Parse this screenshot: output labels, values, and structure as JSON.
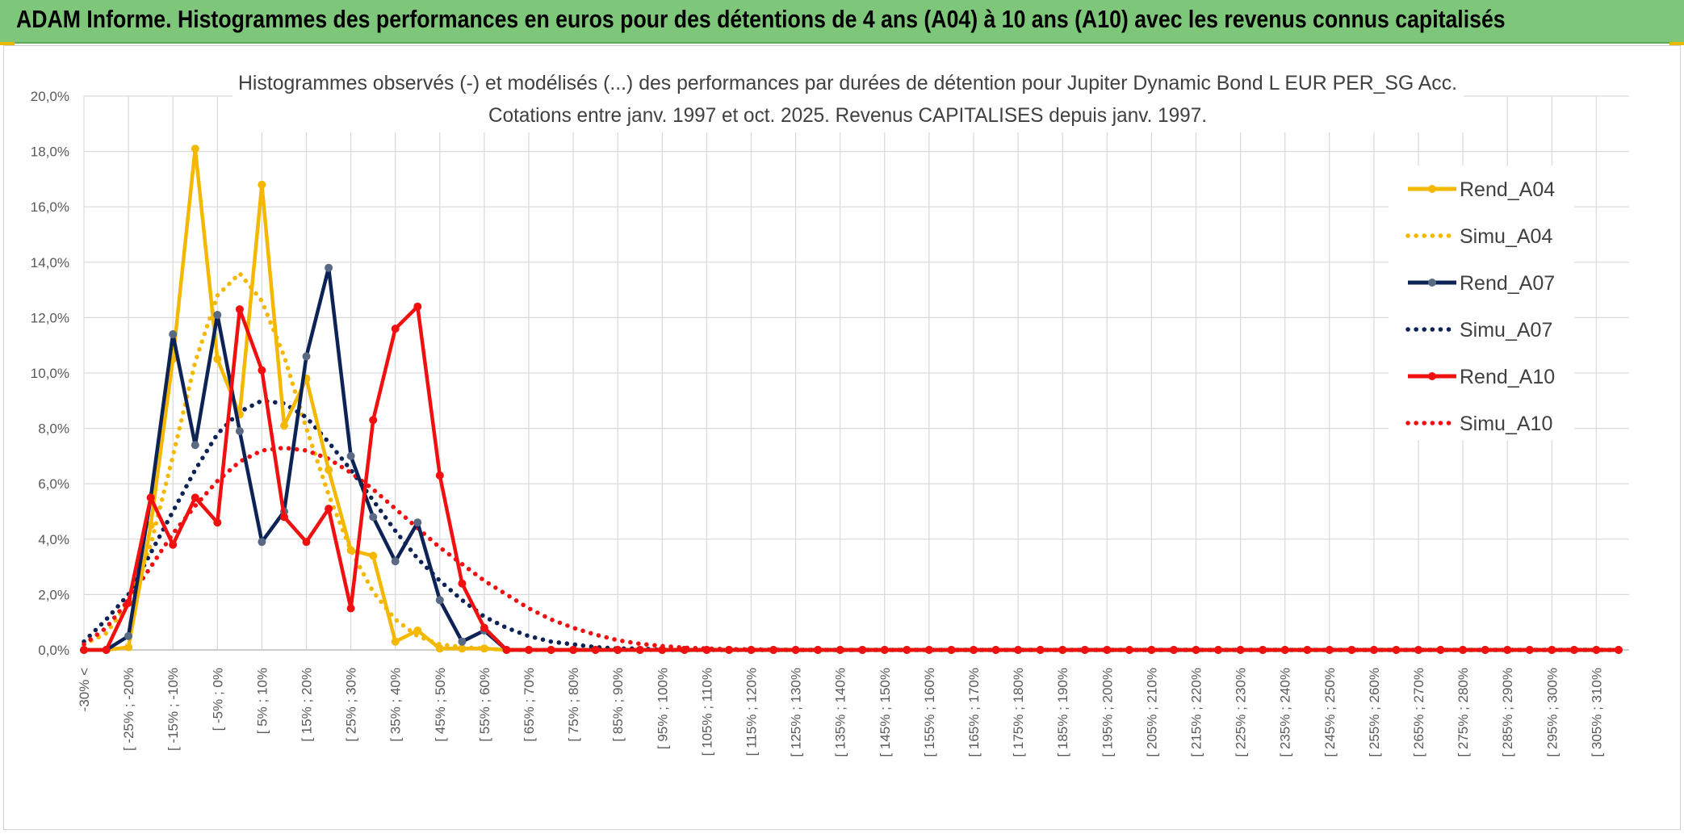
{
  "header": {
    "title": "ADAM Informe. Histogrammes des performances en euros pour des détentions de 4 ans (A04) à 10 ans (A10) avec les revenus connus capitalisés"
  },
  "chart_data": {
    "type": "line",
    "title": "Histogrammes observés (-) et modélisés (...) des performances par durées de détention pour Jupiter Dynamic Bond L EUR PER_SG Acc.",
    "subtitle": "Cotations entre janv. 1997 et oct. 2025. Revenus CAPITALISES depuis janv. 1997.",
    "xlabel": "",
    "ylabel": "",
    "ylim": [
      0,
      20
    ],
    "y_ticks": [
      "0,0%",
      "2,0%",
      "4,0%",
      "6,0%",
      "8,0%",
      "10,0%",
      "12,0%",
      "14,0%",
      "16,0%",
      "18,0%",
      "20,0%"
    ],
    "grid": true,
    "legend_position": "right",
    "x_count": 70,
    "x_tick_labels": [
      "-30% <",
      "[ -25% ; -20%",
      "[ -15% ; -10%",
      "[ -5% ; 0%",
      "[ 5% ; 10%",
      "[ 15% ; 20%",
      "[ 25% ; 30%",
      "[ 35% ; 40%",
      "[ 45% ; 50%",
      "[ 55% ; 60%",
      "[ 65% ; 70%",
      "[ 75% ; 80%",
      "[ 85% ; 90%",
      "[ 95% ; 100%",
      "[ 105% ; 110%",
      "[ 115% ; 120%",
      "[ 125% ; 130%",
      "[ 135% ; 140%",
      "[ 145% ; 150%",
      "[ 155% ; 160%",
      "[ 165% ; 170%",
      "[ 175% ; 180%",
      "[ 185% ; 190%",
      "[ 195% ; 200%",
      "[ 205% ; 210%",
      "[ 215% ; 220%",
      "[ 225% ; 230%",
      "[ 235% ; 240%",
      "[ 245% ; 250%",
      "[ 255% ; 260%",
      "[ 265% ; 270%",
      "[ 275% ; 280%",
      "[ 285% ; 290%",
      "[ 295% ; 300%",
      "[ 305% ; 310%"
    ],
    "x_tick_step": 2,
    "series": [
      {
        "name": "Rend_A04",
        "style": "solid",
        "marker": true,
        "color": "#f5b800",
        "values": [
          0,
          0,
          0.1,
          4.5,
          10.5,
          18.1,
          10.5,
          8.5,
          16.8,
          8.1,
          9.8,
          6.5,
          3.6,
          3.4,
          0.3,
          0.7,
          0.05,
          0.05,
          0.05,
          0,
          0,
          0,
          0,
          0,
          0,
          0,
          0,
          0,
          0,
          0,
          0,
          0,
          0,
          0,
          0,
          0,
          0,
          0,
          0,
          0,
          0,
          0,
          0,
          0,
          0,
          0,
          0,
          0,
          0,
          0,
          0,
          0,
          0,
          0,
          0,
          0,
          0,
          0,
          0,
          0,
          0,
          0,
          0,
          0,
          0,
          0,
          0,
          0,
          0,
          0
        ]
      },
      {
        "name": "Simu_A04",
        "style": "dotted",
        "marker": false,
        "color": "#f5b800",
        "values": [
          0.2,
          0.6,
          1.7,
          3.8,
          7.0,
          10.4,
          12.8,
          13.6,
          12.6,
          10.6,
          8.0,
          5.6,
          3.6,
          2.1,
          1.1,
          0.5,
          0.2,
          0.1,
          0.05,
          0,
          0,
          0,
          0,
          0,
          0,
          0,
          0,
          0,
          0,
          0,
          0,
          0,
          0,
          0,
          0,
          0,
          0,
          0,
          0,
          0,
          0,
          0,
          0,
          0,
          0,
          0,
          0,
          0,
          0,
          0,
          0,
          0,
          0,
          0,
          0,
          0,
          0,
          0,
          0,
          0,
          0,
          0,
          0,
          0,
          0,
          0,
          0,
          0,
          0,
          0
        ]
      },
      {
        "name": "Rend_A07",
        "style": "solid",
        "marker": true,
        "color": "#0d2356",
        "values": [
          0,
          0,
          0.5,
          5.5,
          11.4,
          7.4,
          12.1,
          7.9,
          3.9,
          5.0,
          10.6,
          13.8,
          7.0,
          4.8,
          3.2,
          4.6,
          1.8,
          0.3,
          0.7,
          0,
          0,
          0,
          0,
          0,
          0,
          0,
          0,
          0,
          0,
          0,
          0,
          0,
          0,
          0,
          0,
          0,
          0,
          0,
          0,
          0,
          0,
          0,
          0,
          0,
          0,
          0,
          0,
          0,
          0,
          0,
          0,
          0,
          0,
          0,
          0,
          0,
          0,
          0,
          0,
          0,
          0,
          0,
          0,
          0,
          0,
          0,
          0,
          0,
          0,
          0
        ]
      },
      {
        "name": "Simu_A07",
        "style": "dotted",
        "marker": false,
        "color": "#0d2356",
        "values": [
          0.3,
          1.1,
          2.0,
          3.5,
          5.0,
          6.5,
          7.8,
          8.6,
          9.0,
          8.9,
          8.4,
          7.5,
          6.5,
          5.4,
          4.3,
          3.3,
          2.5,
          1.8,
          1.2,
          0.8,
          0.5,
          0.3,
          0.2,
          0.1,
          0.05,
          0.05,
          0,
          0,
          0,
          0,
          0,
          0,
          0,
          0,
          0,
          0,
          0,
          0,
          0,
          0,
          0,
          0,
          0,
          0,
          0,
          0,
          0,
          0,
          0,
          0,
          0,
          0,
          0,
          0,
          0,
          0,
          0,
          0,
          0,
          0,
          0,
          0,
          0,
          0,
          0,
          0,
          0,
          0,
          0,
          0
        ]
      },
      {
        "name": "Rend_A10",
        "style": "solid",
        "marker": true,
        "color": "#f01010",
        "values": [
          0,
          0,
          1.7,
          5.5,
          3.8,
          5.5,
          4.6,
          12.3,
          10.1,
          4.8,
          3.9,
          5.1,
          1.5,
          8.3,
          11.6,
          12.4,
          6.3,
          2.4,
          0.8,
          0,
          0,
          0,
          0,
          0,
          0,
          0,
          0,
          0,
          0,
          0,
          0,
          0,
          0,
          0,
          0,
          0,
          0,
          0,
          0,
          0,
          0,
          0,
          0,
          0,
          0,
          0,
          0,
          0,
          0,
          0,
          0,
          0,
          0,
          0,
          0,
          0,
          0,
          0,
          0,
          0,
          0,
          0,
          0,
          0,
          0,
          0,
          0,
          0,
          0,
          0
        ]
      },
      {
        "name": "Simu_A10",
        "style": "dotted",
        "marker": false,
        "color": "#f01010",
        "values": [
          0.2,
          0.8,
          1.8,
          3.0,
          4.2,
          5.2,
          6.1,
          6.8,
          7.2,
          7.3,
          7.2,
          6.9,
          6.4,
          5.8,
          5.1,
          4.4,
          3.7,
          3.1,
          2.5,
          2.0,
          1.5,
          1.1,
          0.8,
          0.55,
          0.35,
          0.22,
          0.14,
          0.08,
          0.05,
          0.03,
          0.02,
          0.01,
          0,
          0,
          0,
          0,
          0,
          0,
          0,
          0,
          0,
          0,
          0,
          0,
          0,
          0,
          0,
          0,
          0,
          0,
          0,
          0,
          0,
          0,
          0,
          0,
          0,
          0,
          0,
          0,
          0,
          0,
          0,
          0,
          0,
          0,
          0,
          0,
          0,
          0
        ]
      }
    ]
  }
}
